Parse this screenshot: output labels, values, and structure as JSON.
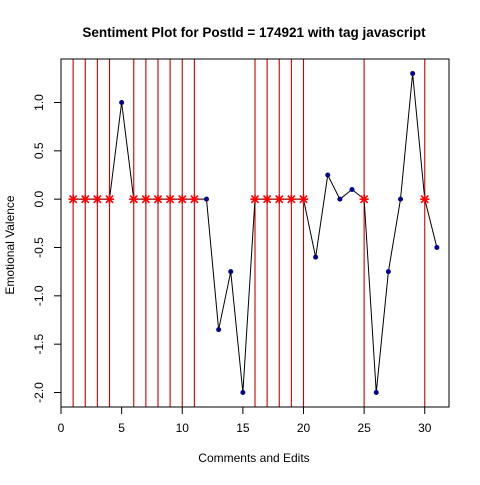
{
  "chart_data": {
    "type": "line",
    "title": "Sentiment Plot for PostId =  174921  with tag  javascript",
    "xlabel": "Comments and Edits",
    "ylabel": "Emotional Valence",
    "xlim": [
      0,
      32
    ],
    "ylim": [
      -2.15,
      1.45
    ],
    "x_ticks": [
      0,
      5,
      10,
      15,
      20,
      25,
      30
    ],
    "y_ticks": [
      -2.0,
      -1.5,
      -1.0,
      -0.5,
      0.0,
      0.5,
      1.0
    ],
    "x_tick_labels": [
      "0",
      "5",
      "10",
      "15",
      "20",
      "25",
      "30"
    ],
    "y_tick_labels": [
      "-2.0",
      "-1.5",
      "-1.0",
      "-0.5",
      "0.0",
      "0.5",
      "1.0"
    ],
    "grid": false,
    "line_color": "#000000",
    "point_color": "#00008b",
    "marker_color": "#ff0000",
    "vline_color": "#cc0000",
    "series": [
      {
        "x": [
          1,
          2,
          3,
          4,
          5,
          6,
          7,
          8,
          9,
          10,
          11,
          12,
          13,
          14,
          15,
          16,
          17,
          18,
          19,
          20,
          21,
          22,
          23,
          24,
          25,
          26,
          27,
          28,
          29,
          30,
          31
        ],
        "values": [
          0,
          0,
          0,
          0,
          1.0,
          0,
          0,
          0,
          0,
          0,
          0,
          0,
          -1.35,
          -0.75,
          -2.0,
          0,
          0,
          0,
          0,
          0,
          -0.6,
          0.25,
          0,
          0.1,
          0,
          -2.0,
          -0.75,
          0,
          1.3,
          0,
          -0.5
        ]
      }
    ],
    "marked_x": [
      1,
      2,
      3,
      4,
      6,
      7,
      8,
      9,
      10,
      11,
      16,
      17,
      18,
      19,
      20,
      25,
      30
    ]
  }
}
